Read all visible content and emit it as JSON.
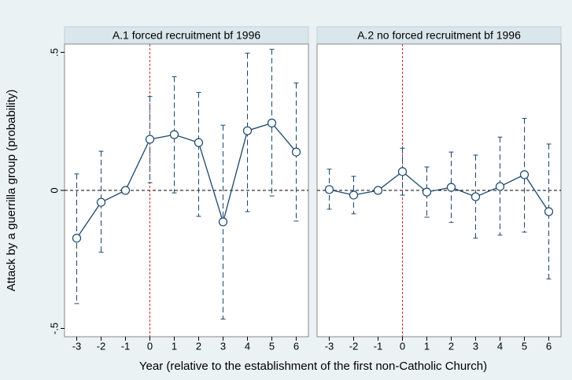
{
  "ylabel": "Attack by a guerrilla group (probability)",
  "xlabel": "Year (relative to the establishment of the first non-Catholic Church)",
  "chart_data": [
    {
      "type": "errorbar",
      "title": "A.1 forced recruitment bf 1996",
      "color": "#1a476f",
      "x": [
        -3,
        -2,
        -1,
        0,
        1,
        2,
        3,
        4,
        5,
        6
      ],
      "values": [
        -0.173,
        -0.043,
        0,
        0.185,
        0.202,
        0.173,
        -0.114,
        0.216,
        0.244,
        0.139
      ],
      "upper": [
        0.06,
        0.142,
        null,
        0.34,
        0.412,
        0.355,
        0.236,
        0.497,
        0.511,
        0.389
      ],
      "lower": [
        -0.41,
        -0.224,
        null,
        0.028,
        -0.009,
        -0.094,
        -0.466,
        -0.077,
        -0.02,
        -0.111
      ],
      "xlim": [
        -3.5,
        6.5
      ],
      "xticks": [
        -3,
        -2,
        -1,
        0,
        1,
        2,
        3,
        4,
        5,
        6
      ],
      "ylim": [
        -0.53,
        0.53
      ],
      "yticks": [
        {
          "value": -0.5,
          "label": "-.5"
        },
        0,
        {
          "value": 0.5,
          "label": ".5"
        }
      ],
      "vline": 0,
      "hline": 0
    },
    {
      "type": "errorbar",
      "title": "A.2 no forced recruitment bf 1996",
      "color": "#1a476f",
      "x": [
        -3,
        -2,
        -1,
        0,
        1,
        2,
        3,
        4,
        5,
        6
      ],
      "values": [
        0.003,
        -0.017,
        0,
        0.068,
        -0.006,
        0.011,
        -0.023,
        0.014,
        0.057,
        -0.077
      ],
      "upper": [
        0.077,
        0.051,
        null,
        0.153,
        0.085,
        0.139,
        0.128,
        0.193,
        0.261,
        0.168
      ],
      "lower": [
        -0.068,
        -0.085,
        null,
        -0.017,
        -0.097,
        -0.116,
        -0.173,
        -0.162,
        -0.151,
        -0.321
      ],
      "xlim": [
        -3.5,
        6.5
      ],
      "xticks": [
        -3,
        -2,
        -1,
        0,
        1,
        2,
        3,
        4,
        5,
        6
      ],
      "ylim": [
        -0.53,
        0.53
      ],
      "vline": 0,
      "hline": 0
    }
  ]
}
